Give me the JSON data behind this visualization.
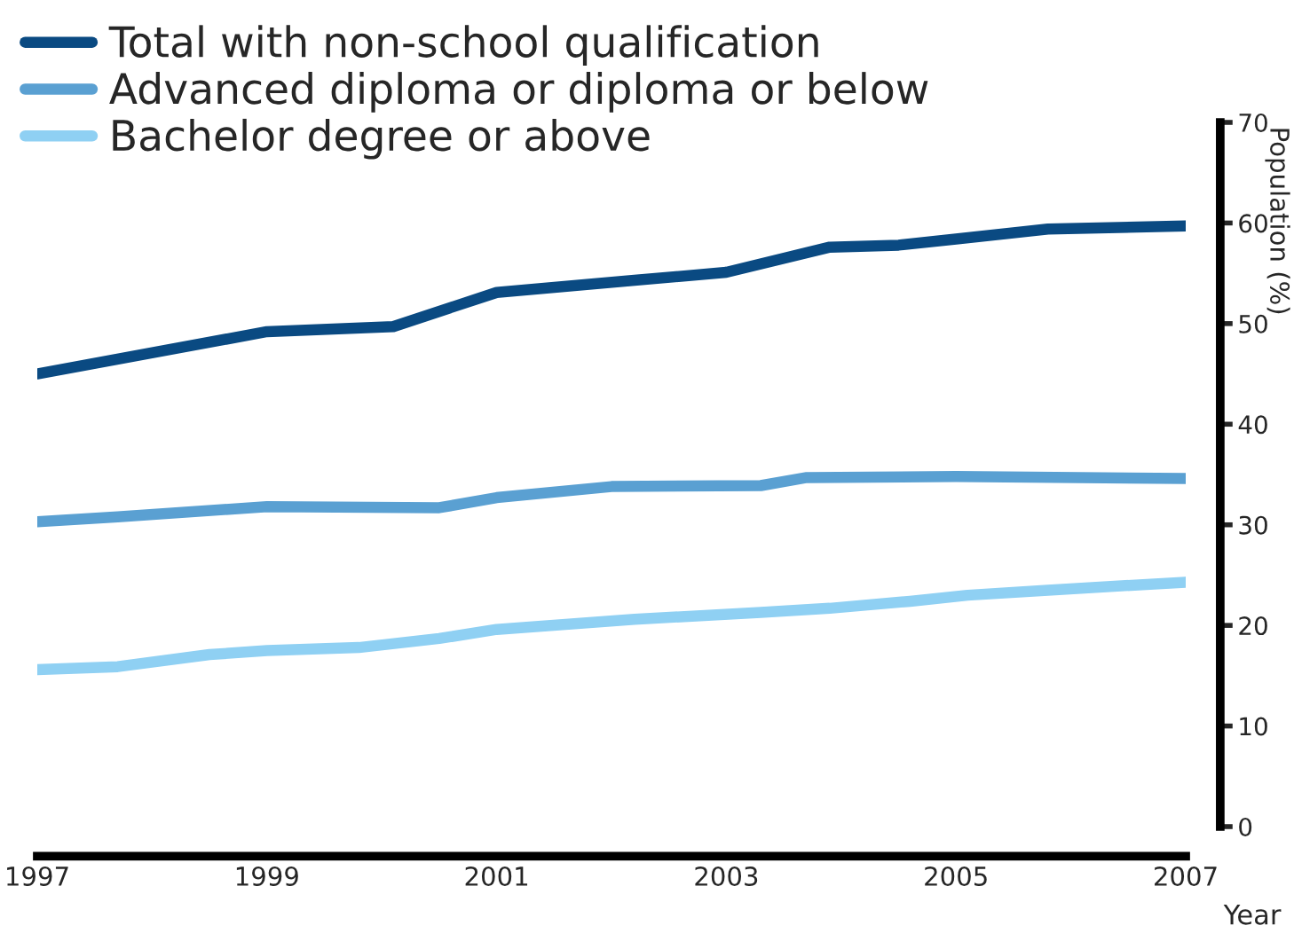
{
  "chart_data": {
    "type": "line",
    "xlabel": "Year",
    "ylabel": "Population (%)",
    "series": [
      {
        "name": "Total with non-school qualification",
        "color": "#0a4a82",
        "x": [
          1997,
          1999,
          2000.1,
          2001,
          2002.2,
          2003,
          2003.9,
          2004.5,
          2005,
          2005.8,
          2007
        ],
        "values": [
          45.0,
          49.2,
          49.7,
          53.1,
          54.3,
          55.1,
          57.6,
          57.8,
          58.4,
          59.4,
          59.7
        ]
      },
      {
        "name": "Advanced diploma or diploma or below",
        "color": "#5aa0d2",
        "x": [
          1997,
          1997.7,
          1999,
          2000.5,
          2001,
          2002,
          2003.3,
          2003.7,
          2005,
          2007
        ],
        "values": [
          30.3,
          30.8,
          31.8,
          31.7,
          32.7,
          33.8,
          33.9,
          34.7,
          34.8,
          34.6
        ]
      },
      {
        "name": "Bachelor degree or above",
        "color": "#8fd0f3",
        "x": [
          1997,
          1997.7,
          1998.5,
          1999,
          1999.8,
          2000.5,
          2001,
          2002.2,
          2003.3,
          2003.9,
          2004.6,
          2005.1,
          2005.8,
          2007
        ],
        "values": [
          15.6,
          15.9,
          17.1,
          17.5,
          17.8,
          18.7,
          19.6,
          20.6,
          21.3,
          21.7,
          22.4,
          23.0,
          23.5,
          24.3
        ]
      }
    ],
    "xlim": [
      1997,
      2007
    ],
    "xticks": [
      1997,
      1999,
      2001,
      2003,
      2005,
      2007
    ],
    "ylim": [
      0,
      70
    ],
    "yticks": [
      0,
      10,
      20,
      30,
      40,
      50,
      60,
      70
    ],
    "grid": false,
    "legend": "top left",
    "marker": "none",
    "line_style": "solid"
  }
}
